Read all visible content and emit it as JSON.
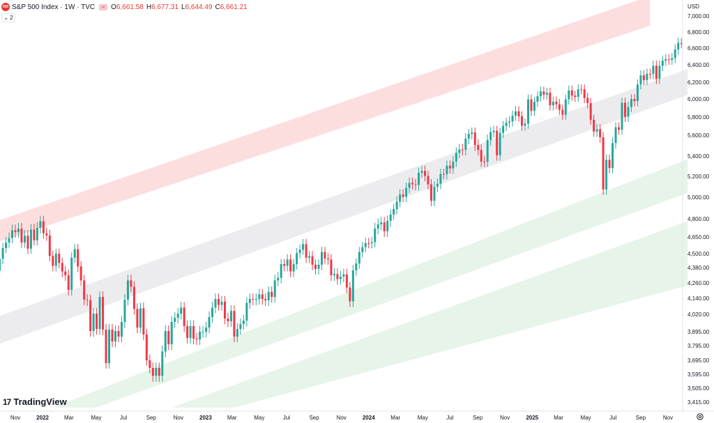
{
  "header": {
    "logo_text": "500",
    "symbol": "S&P 500 Index · 1W · TVC",
    "chip_icon": "compare-icon",
    "open_label": "O",
    "open": "6,661.58",
    "high_label": "H",
    "high": "6,677.31",
    "low_label": "L",
    "low": "6,644.49",
    "close_label": "C",
    "close": "6,661.21",
    "collapse_count": "2"
  },
  "brand": {
    "mark": "17",
    "name": "TradingView"
  },
  "colors": {
    "up": "#26a69a",
    "down": "#f23645",
    "red_band": "#fddede",
    "grey_band": "#ececef",
    "green_band": "#e6f4e9",
    "axis_text": "#131722"
  },
  "chart_data": {
    "type": "candlestick",
    "currency": "USD",
    "ylim": [
      3400,
      7100
    ],
    "y_ticks": [
      "7,000.00",
      "6,800.00",
      "6,600.00",
      "6,400.00",
      "6,200.00",
      "6,000.00",
      "5,800.00",
      "5,600.00",
      "5,400.00",
      "5,200.00",
      "5,000.00",
      "4,800.00",
      "4,650.00",
      "4,500.00",
      "4,380.00",
      "4,260.00",
      "4,140.00",
      "4,020.00",
      "3,895.00",
      "3,795.00",
      "3,695.00",
      "3,595.00",
      "3,505.00",
      "3,415.00"
    ],
    "x_ticks": [
      {
        "label": "Nov",
        "date": "2021-11-01"
      },
      {
        "label": "2022",
        "date": "2022-01-01"
      },
      {
        "label": "Mar",
        "date": "2022-03-01"
      },
      {
        "label": "May",
        "date": "2022-05-01"
      },
      {
        "label": "Jul",
        "date": "2022-07-01"
      },
      {
        "label": "Sep",
        "date": "2022-09-01"
      },
      {
        "label": "Nov",
        "date": "2022-11-01"
      },
      {
        "label": "2023",
        "date": "2023-01-01"
      },
      {
        "label": "Mar",
        "date": "2023-03-01"
      },
      {
        "label": "May",
        "date": "2023-05-01"
      },
      {
        "label": "Jul",
        "date": "2023-07-01"
      },
      {
        "label": "Sep",
        "date": "2023-09-01"
      },
      {
        "label": "Nov",
        "date": "2023-11-01"
      },
      {
        "label": "2024",
        "date": "2024-01-01"
      },
      {
        "label": "Mar",
        "date": "2024-03-01"
      },
      {
        "label": "May",
        "date": "2024-05-01"
      },
      {
        "label": "Jul",
        "date": "2024-07-01"
      },
      {
        "label": "Sep",
        "date": "2024-09-01"
      },
      {
        "label": "Nov",
        "date": "2024-11-01"
      },
      {
        "label": "2025",
        "date": "2025-01-01"
      },
      {
        "label": "Mar",
        "date": "2025-03-01"
      },
      {
        "label": "May",
        "date": "2025-05-01"
      },
      {
        "label": "Jul",
        "date": "2025-07-01"
      },
      {
        "label": "Sep",
        "date": "2025-09-01"
      },
      {
        "label": "Nov",
        "date": "2025-11-01"
      }
    ],
    "channels": [
      {
        "name": "red",
        "color": "#fddede",
        "upper": [
          [
            "2021-09-20",
            4780
          ],
          [
            "2025-09-22",
            7250
          ]
        ],
        "lower": [
          [
            "2021-09-20",
            4600
          ],
          [
            "2025-09-22",
            6880
          ]
        ]
      },
      {
        "name": "grey",
        "color": "#ececef",
        "upper": [
          [
            "2021-09-20",
            4000
          ],
          [
            "2025-12-15",
            6350
          ]
        ],
        "lower": [
          [
            "2021-09-20",
            3800
          ],
          [
            "2025-12-15",
            6050
          ]
        ]
      },
      {
        "name": "green-1",
        "color": "#e6f4e9",
        "upper": [
          [
            "2022-01-24",
            3380
          ],
          [
            "2025-12-15",
            5370
          ]
        ],
        "lower": [
          [
            "2022-05-01",
            3380
          ],
          [
            "2025-12-15",
            5040
          ]
        ]
      },
      {
        "name": "green-2",
        "color": "#e6f4e9",
        "upper": [
          [
            "2022-10-17",
            3380
          ],
          [
            "2025-12-15",
            4780
          ]
        ],
        "lower": [
          [
            "2023-03-06",
            3380
          ],
          [
            "2025-12-15",
            4240
          ]
        ]
      }
    ],
    "start_date": "2021-09-20",
    "series": [
      {
        "o": 4430,
        "c": 4356
      },
      {
        "o": 4356,
        "c": 4456
      },
      {
        "o": 4456,
        "c": 4550
      },
      {
        "o": 4550,
        "c": 4600
      },
      {
        "o": 4600,
        "c": 4640
      },
      {
        "o": 4640,
        "c": 4705
      },
      {
        "o": 4705,
        "c": 4690
      },
      {
        "o": 4690,
        "c": 4718
      },
      {
        "o": 4718,
        "c": 4600
      },
      {
        "o": 4600,
        "c": 4660
      },
      {
        "o": 4660,
        "c": 4545
      },
      {
        "o": 4545,
        "c": 4710
      },
      {
        "o": 4710,
        "c": 4620
      },
      {
        "o": 4620,
        "c": 4725
      },
      {
        "o": 4725,
        "c": 4780
      },
      {
        "o": 4780,
        "c": 4680
      },
      {
        "o": 4680,
        "c": 4662
      },
      {
        "o": 4662,
        "c": 4480
      },
      {
        "o": 4480,
        "c": 4395
      },
      {
        "o": 4395,
        "c": 4500
      },
      {
        "o": 4500,
        "c": 4420
      },
      {
        "o": 4420,
        "c": 4350
      },
      {
        "o": 4350,
        "c": 4320
      },
      {
        "o": 4320,
        "c": 4205
      },
      {
        "o": 4205,
        "c": 4465
      },
      {
        "o": 4465,
        "c": 4540
      },
      {
        "o": 4540,
        "c": 4390
      },
      {
        "o": 4390,
        "c": 4280
      },
      {
        "o": 4280,
        "c": 4130
      },
      {
        "o": 4130,
        "c": 4125
      },
      {
        "o": 4125,
        "c": 3900
      },
      {
        "o": 3900,
        "c": 4025
      },
      {
        "o": 4025,
        "c": 3915
      },
      {
        "o": 3915,
        "c": 4150
      },
      {
        "o": 4150,
        "c": 3910
      },
      {
        "o": 3910,
        "c": 3675
      },
      {
        "o": 3675,
        "c": 3910
      },
      {
        "o": 3910,
        "c": 3825
      },
      {
        "o": 3825,
        "c": 3900
      },
      {
        "o": 3900,
        "c": 3860
      },
      {
        "o": 3860,
        "c": 3965
      },
      {
        "o": 3965,
        "c": 4130
      },
      {
        "o": 4130,
        "c": 4280
      },
      {
        "o": 4280,
        "c": 4230
      },
      {
        "o": 4230,
        "c": 4060
      },
      {
        "o": 4060,
        "c": 3925
      },
      {
        "o": 3925,
        "c": 4065
      },
      {
        "o": 4065,
        "c": 3875
      },
      {
        "o": 3875,
        "c": 3695
      },
      {
        "o": 3695,
        "c": 3640
      },
      {
        "o": 3640,
        "c": 3585
      },
      {
        "o": 3585,
        "c": 3640
      },
      {
        "o": 3640,
        "c": 3585
      },
      {
        "o": 3585,
        "c": 3755
      },
      {
        "o": 3755,
        "c": 3900
      },
      {
        "o": 3900,
        "c": 3805
      },
      {
        "o": 3805,
        "c": 3965
      },
      {
        "o": 3965,
        "c": 3995
      },
      {
        "o": 3995,
        "c": 4025
      },
      {
        "o": 4025,
        "c": 4070
      },
      {
        "o": 4070,
        "c": 3935
      },
      {
        "o": 3935,
        "c": 3850
      },
      {
        "o": 3850,
        "c": 3935
      },
      {
        "o": 3935,
        "c": 3845
      },
      {
        "o": 3845,
        "c": 3840
      },
      {
        "o": 3840,
        "c": 3895
      },
      {
        "o": 3895,
        "c": 3895
      },
      {
        "o": 3895,
        "c": 3925
      },
      {
        "o": 3925,
        "c": 4000
      },
      {
        "o": 4000,
        "c": 4070
      },
      {
        "o": 4070,
        "c": 4135
      },
      {
        "o": 4135,
        "c": 4090
      },
      {
        "o": 4090,
        "c": 4115
      },
      {
        "o": 4115,
        "c": 3990
      },
      {
        "o": 3990,
        "c": 3970
      },
      {
        "o": 3970,
        "c": 4045
      },
      {
        "o": 4045,
        "c": 3860
      },
      {
        "o": 3860,
        "c": 3915
      },
      {
        "o": 3915,
        "c": 3950
      },
      {
        "o": 3950,
        "c": 3975
      },
      {
        "o": 3975,
        "c": 4105
      },
      {
        "o": 4105,
        "c": 4135
      },
      {
        "o": 4135,
        "c": 4130
      },
      {
        "o": 4130,
        "c": 4135
      },
      {
        "o": 4135,
        "c": 4170
      },
      {
        "o": 4170,
        "c": 4135
      },
      {
        "o": 4135,
        "c": 4125
      },
      {
        "o": 4125,
        "c": 4190
      },
      {
        "o": 4190,
        "c": 4150
      },
      {
        "o": 4150,
        "c": 4280
      },
      {
        "o": 4280,
        "c": 4300
      },
      {
        "o": 4300,
        "c": 4410
      },
      {
        "o": 4410,
        "c": 4395
      },
      {
        "o": 4395,
        "c": 4450
      },
      {
        "o": 4450,
        "c": 4350
      },
      {
        "o": 4350,
        "c": 4410
      },
      {
        "o": 4410,
        "c": 4505
      },
      {
        "o": 4505,
        "c": 4535
      },
      {
        "o": 4535,
        "c": 4585
      },
      {
        "o": 4585,
        "c": 4465
      },
      {
        "o": 4465,
        "c": 4478
      },
      {
        "o": 4478,
        "c": 4405
      },
      {
        "o": 4405,
        "c": 4370
      },
      {
        "o": 4370,
        "c": 4405
      },
      {
        "o": 4405,
        "c": 4515
      },
      {
        "o": 4515,
        "c": 4458
      },
      {
        "o": 4458,
        "c": 4450
      },
      {
        "o": 4450,
        "c": 4320
      },
      {
        "o": 4320,
        "c": 4330
      },
      {
        "o": 4330,
        "c": 4290
      },
      {
        "o": 4290,
        "c": 4310
      },
      {
        "o": 4310,
        "c": 4327
      },
      {
        "o": 4327,
        "c": 4224
      },
      {
        "o": 4224,
        "c": 4117
      },
      {
        "o": 4117,
        "c": 4358
      },
      {
        "o": 4358,
        "c": 4415
      },
      {
        "o": 4415,
        "c": 4514
      },
      {
        "o": 4514,
        "c": 4559
      },
      {
        "o": 4559,
        "c": 4595
      },
      {
        "o": 4595,
        "c": 4594
      },
      {
        "o": 4594,
        "c": 4604
      },
      {
        "o": 4604,
        "c": 4719
      },
      {
        "o": 4719,
        "c": 4755
      },
      {
        "o": 4755,
        "c": 4770
      },
      {
        "o": 4770,
        "c": 4697
      },
      {
        "o": 4697,
        "c": 4783
      },
      {
        "o": 4783,
        "c": 4840
      },
      {
        "o": 4840,
        "c": 4890
      },
      {
        "o": 4890,
        "c": 4958
      },
      {
        "o": 4958,
        "c": 5026
      },
      {
        "o": 5026,
        "c": 5005
      },
      {
        "o": 5005,
        "c": 5089
      },
      {
        "o": 5089,
        "c": 5137
      },
      {
        "o": 5137,
        "c": 5124
      },
      {
        "o": 5124,
        "c": 5117
      },
      {
        "o": 5117,
        "c": 5234
      },
      {
        "o": 5234,
        "c": 5254
      },
      {
        "o": 5254,
        "c": 5204
      },
      {
        "o": 5204,
        "c": 5123
      },
      {
        "o": 5123,
        "c": 4967
      },
      {
        "o": 4967,
        "c": 5100
      },
      {
        "o": 5100,
        "c": 5128
      },
      {
        "o": 5128,
        "c": 5223
      },
      {
        "o": 5223,
        "c": 5222
      },
      {
        "o": 5222,
        "c": 5304
      },
      {
        "o": 5304,
        "c": 5278
      },
      {
        "o": 5278,
        "c": 5346
      },
      {
        "o": 5346,
        "c": 5431
      },
      {
        "o": 5431,
        "c": 5464
      },
      {
        "o": 5464,
        "c": 5460
      },
      {
        "o": 5460,
        "c": 5567
      },
      {
        "o": 5567,
        "c": 5615
      },
      {
        "o": 5615,
        "c": 5631
      },
      {
        "o": 5631,
        "c": 5505
      },
      {
        "o": 5505,
        "c": 5459
      },
      {
        "o": 5459,
        "c": 5346
      },
      {
        "o": 5346,
        "c": 5344
      },
      {
        "o": 5344,
        "c": 5554
      },
      {
        "o": 5554,
        "c": 5634
      },
      {
        "o": 5634,
        "c": 5648
      },
      {
        "o": 5648,
        "c": 5408
      },
      {
        "o": 5408,
        "c": 5626
      },
      {
        "o": 5626,
        "c": 5702
      },
      {
        "o": 5702,
        "c": 5738
      },
      {
        "o": 5738,
        "c": 5751
      },
      {
        "o": 5751,
        "c": 5815
      },
      {
        "o": 5815,
        "c": 5864
      },
      {
        "o": 5864,
        "c": 5808
      },
      {
        "o": 5808,
        "c": 5705
      },
      {
        "o": 5705,
        "c": 5728
      },
      {
        "o": 5728,
        "c": 5995
      },
      {
        "o": 5995,
        "c": 5870
      },
      {
        "o": 5870,
        "c": 5969
      },
      {
        "o": 5969,
        "c": 6032
      },
      {
        "o": 6032,
        "c": 6090
      },
      {
        "o": 6090,
        "c": 6051
      },
      {
        "o": 6051,
        "c": 6075
      },
      {
        "o": 6075,
        "c": 5930
      },
      {
        "o": 5930,
        "c": 5970
      },
      {
        "o": 5970,
        "c": 5942
      },
      {
        "o": 5942,
        "c": 5881
      },
      {
        "o": 5881,
        "c": 5827
      },
      {
        "o": 5827,
        "c": 5996
      },
      {
        "o": 5996,
        "c": 6101
      },
      {
        "o": 6101,
        "c": 6040
      },
      {
        "o": 6040,
        "c": 6025
      },
      {
        "o": 6025,
        "c": 6115
      },
      {
        "o": 6115,
        "c": 6114
      },
      {
        "o": 6114,
        "c": 6013
      },
      {
        "o": 6013,
        "c": 5954
      },
      {
        "o": 5954,
        "c": 5770
      },
      {
        "o": 5770,
        "c": 5639
      },
      {
        "o": 5639,
        "c": 5667
      },
      {
        "o": 5667,
        "c": 5581
      },
      {
        "o": 5581,
        "c": 5074
      },
      {
        "o": 5074,
        "c": 5363
      },
      {
        "o": 5363,
        "c": 5282
      },
      {
        "o": 5282,
        "c": 5525
      },
      {
        "o": 5525,
        "c": 5687
      },
      {
        "o": 5687,
        "c": 5660
      },
      {
        "o": 5660,
        "c": 5958
      },
      {
        "o": 5958,
        "c": 5803
      },
      {
        "o": 5803,
        "c": 5912
      },
      {
        "o": 5912,
        "c": 6000
      },
      {
        "o": 6000,
        "c": 5977
      },
      {
        "o": 5977,
        "c": 6173
      },
      {
        "o": 6173,
        "c": 6279
      },
      {
        "o": 6279,
        "c": 6225
      },
      {
        "o": 6225,
        "c": 6297
      },
      {
        "o": 6297,
        "c": 6296
      },
      {
        "o": 6296,
        "c": 6389
      },
      {
        "o": 6389,
        "c": 6238
      },
      {
        "o": 6238,
        "c": 6389
      },
      {
        "o": 6389,
        "c": 6449
      },
      {
        "o": 6449,
        "c": 6466
      },
      {
        "o": 6466,
        "c": 6460
      },
      {
        "o": 6460,
        "c": 6481
      },
      {
        "o": 6481,
        "c": 6584
      },
      {
        "o": 6584,
        "c": 6664
      },
      {
        "o": 6661.58,
        "c": 6661.21
      }
    ]
  }
}
